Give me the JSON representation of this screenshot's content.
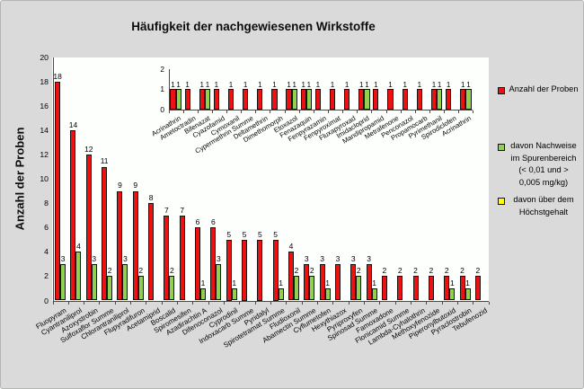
{
  "chart_data": [
    {
      "type": "bar",
      "role": "main",
      "title": "Häufigkeit der nachgewiesenen Wirkstoffe",
      "xlabel": "",
      "ylabel": "Anzahl der Proben",
      "ylim": [
        0,
        20
      ],
      "ytick_step": 2,
      "grid": false,
      "legend_position": "right",
      "categories": [
        "Fluopyram",
        "Cyantraniliprol",
        "Azoxystrobin",
        "Sulfoxaflor Summe",
        "Chlorantraniliprol",
        "Flupyradifuron",
        "Acetamiprid",
        "Boscalid",
        "Spiromesifen",
        "Azadirachtin A",
        "Difenoconazol",
        "Cyprodinil",
        "Indoxacarb Summe",
        "Pyridalyl",
        "Spirotetramat Summe",
        "Fludioxonil",
        "Abamectin Summe",
        "Cyflumetofen",
        "Hexythiazox",
        "Pyriproxyfen",
        "Spinosad Summe",
        "Famoxadone",
        "Flonicamid Summe",
        "Lambda-Cyhalothrin",
        "Methoxyfenozide",
        "Piperonylbutoxid",
        "Pyraclostrobin",
        "Tebufenozid"
      ],
      "series": [
        {
          "name": "Anzahl der Proben",
          "color": "#ee1111",
          "values": [
            18,
            14,
            12,
            11,
            9,
            9,
            8,
            7,
            7,
            6,
            6,
            5,
            5,
            5,
            5,
            4,
            3,
            3,
            3,
            3,
            3,
            2,
            2,
            2,
            2,
            2,
            2,
            2
          ]
        },
        {
          "name": "davon Nachweise im Spurenbereich (< 0,01 und > 0,005 mg/kg)",
          "color": "#92d050",
          "values": [
            3,
            4,
            3,
            2,
            3,
            2,
            0,
            2,
            0,
            1,
            3,
            1,
            0,
            0,
            1,
            2,
            2,
            1,
            0,
            2,
            1,
            0,
            0,
            0,
            0,
            1,
            1,
            0
          ]
        },
        {
          "name": "davon über dem Höchstgehalt",
          "color": "#ffff00",
          "values": [
            0,
            0,
            0,
            0,
            0,
            0,
            0,
            0,
            0,
            0,
            0,
            0,
            0,
            0,
            0,
            0,
            0,
            0,
            0,
            0,
            0,
            0,
            0,
            0,
            0,
            0,
            0,
            0
          ]
        }
      ]
    },
    {
      "type": "bar",
      "role": "inset",
      "title": "",
      "xlabel": "",
      "ylabel": "",
      "ylim": [
        0,
        2
      ],
      "ytick_step": 1,
      "grid": false,
      "categories": [
        "Acrinathrin",
        "Ametoctradin",
        "Bifenazat",
        "Cyazofamid",
        "Cymoxanil",
        "Cypermethrin Summe",
        "Deltamethrin",
        "Dimethomorph",
        "Etoxazol",
        "Fenazaquin",
        "Fenpyrazamin",
        "Fenpyroximat",
        "Fluxapyroxad",
        "Imidacloprid",
        "Mandipropamid",
        "Metrafenone",
        "Penconazol",
        "Propamocarb",
        "Pyrimethanil",
        "Spirodiclofen",
        "Acrinathrin"
      ],
      "series": [
        {
          "name": "Anzahl der Proben",
          "color": "#ee1111",
          "values": [
            1,
            1,
            1,
            1,
            1,
            1,
            1,
            1,
            1,
            1,
            1,
            1,
            1,
            1,
            1,
            1,
            1,
            1,
            1,
            1,
            1
          ]
        },
        {
          "name": "davon Nachweise im Spurenbereich (< 0,01 und > 0,005 mg/kg)",
          "color": "#92d050",
          "values": [
            1,
            0,
            1,
            0,
            0,
            0,
            0,
            0,
            1,
            1,
            0,
            0,
            0,
            1,
            0,
            0,
            0,
            0,
            1,
            0,
            1
          ]
        }
      ]
    }
  ],
  "legend": {
    "items": [
      {
        "color": "#ee1111",
        "lines": [
          "Anzahl der Proben"
        ]
      },
      {
        "color": "#92d050",
        "lines": [
          "davon Nachweise",
          "im Spurenbereich",
          "(< 0,01 und >",
          "0,005 mg/kg)"
        ]
      },
      {
        "color": "#ffff00",
        "lines": [
          "davon über dem",
          "Höchstgehalt"
        ]
      }
    ]
  },
  "colors": {
    "background": "#d9dad9",
    "plot_background": "#fdfffd",
    "bar_red": "#ee1111",
    "bar_green": "#92d050",
    "legend_yellow": "#ffff00",
    "axis": "#4a4a4a",
    "bar_border": "#141414",
    "text": "#000000"
  }
}
